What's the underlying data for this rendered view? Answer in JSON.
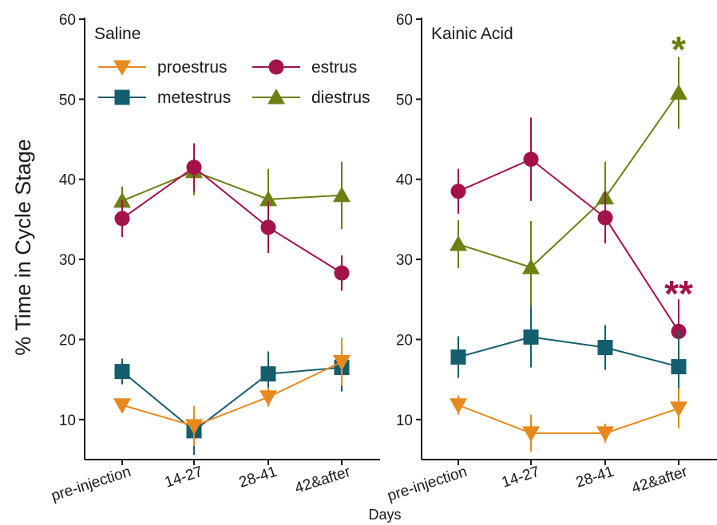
{
  "figure": {
    "ylabel": "% Time in Cycle Stage",
    "xlabel": "Days"
  },
  "colors": {
    "proestrus": "#e8891e",
    "estrus": "#a3124a",
    "metestrus": "#155e6e",
    "diestrus": "#6e7f12",
    "axis": "#1a1a1a"
  },
  "legend": {
    "items": [
      {
        "key": "proestrus",
        "label": "proestrus",
        "marker": "triangle-down"
      },
      {
        "key": "estrus",
        "label": "estrus",
        "marker": "circle"
      },
      {
        "key": "metestrus",
        "label": "metestrus",
        "marker": "square"
      },
      {
        "key": "diestrus",
        "label": "diestrus",
        "marker": "triangle-up"
      }
    ]
  },
  "chart_data": [
    {
      "type": "line",
      "title": "Saline",
      "categories": [
        "pre-injection",
        "14-27",
        "28-41",
        "42&after"
      ],
      "ylim": [
        5,
        60
      ],
      "yticks": [
        10,
        20,
        30,
        40,
        50,
        60
      ],
      "grid": false,
      "legend_position": "top",
      "series": [
        {
          "name": "proestrus",
          "values": [
            11.8,
            9.2,
            12.8,
            17.2
          ],
          "err": [
            0.8,
            2.5,
            1.2,
            3.0
          ]
        },
        {
          "name": "estrus",
          "values": [
            35.1,
            41.5,
            34.0,
            28.3
          ],
          "err": [
            2.3,
            3.0,
            3.2,
            2.2
          ]
        },
        {
          "name": "metestrus",
          "values": [
            16.0,
            8.6,
            15.7,
            16.5
          ],
          "err": [
            1.6,
            3.0,
            2.8,
            3.0
          ]
        },
        {
          "name": "diestrus",
          "values": [
            37.3,
            41.0,
            37.5,
            38.0
          ],
          "err": [
            1.8,
            3.0,
            3.8,
            4.2
          ]
        }
      ],
      "annotations": []
    },
    {
      "type": "line",
      "title": "Kainic Acid",
      "categories": [
        "pre-injection",
        "14-27",
        "28-41",
        "42&after"
      ],
      "ylim": [
        5,
        60
      ],
      "yticks": [
        10,
        20,
        30,
        40,
        50,
        60
      ],
      "grid": false,
      "series": [
        {
          "name": "proestrus",
          "values": [
            11.8,
            8.3,
            8.3,
            11.4
          ],
          "err": [
            1.2,
            2.3,
            1.2,
            2.5
          ]
        },
        {
          "name": "estrus",
          "values": [
            38.5,
            42.5,
            35.2,
            21.0
          ],
          "err": [
            2.8,
            5.2,
            3.2,
            4.0
          ]
        },
        {
          "name": "metestrus",
          "values": [
            17.8,
            20.3,
            19.0,
            16.6
          ],
          "err": [
            2.6,
            3.8,
            2.8,
            4.5
          ]
        },
        {
          "name": "diestrus",
          "values": [
            31.9,
            29.0,
            37.7,
            50.8
          ],
          "err": [
            3.0,
            5.8,
            4.5,
            4.5
          ]
        }
      ],
      "annotations": [
        {
          "text": "*",
          "category": "42&after",
          "y": 56.8,
          "series": "diestrus"
        },
        {
          "text": "**",
          "category": "42&after",
          "y": 26.3,
          "series": "estrus"
        }
      ]
    }
  ]
}
